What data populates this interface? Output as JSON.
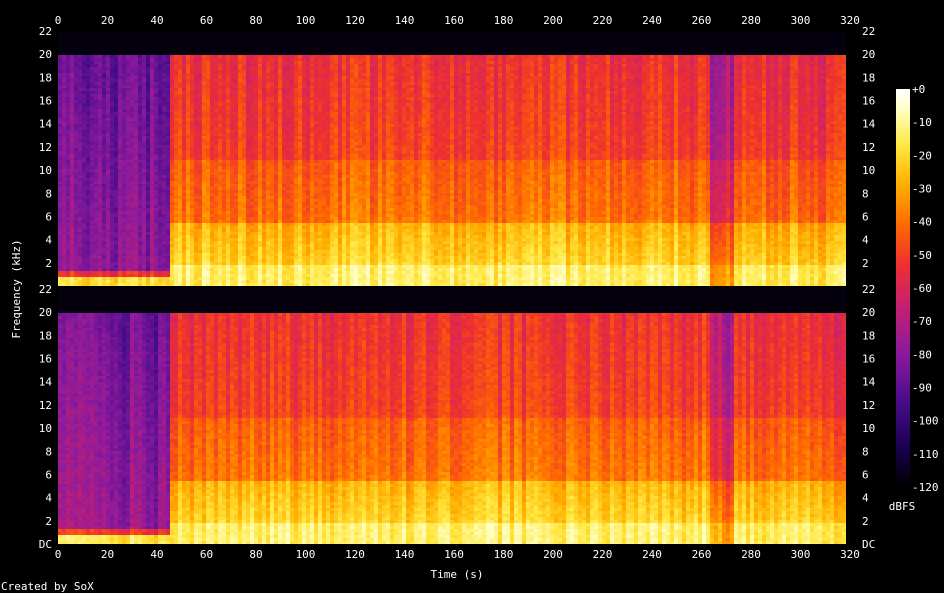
{
  "chart_data": {
    "type": "heatmap",
    "xlabel": "Time (s)",
    "ylabel": "Frequency (kHz)",
    "x_ticks": [
      "0",
      "20",
      "40",
      "60",
      "80",
      "100",
      "120",
      "140",
      "160",
      "180",
      "200",
      "220",
      "240",
      "260",
      "280",
      "300",
      "320"
    ],
    "xlim": [
      0,
      320
    ],
    "channels": [
      {
        "y_ticks": [
          "22",
          "20",
          "18",
          "16",
          "14",
          "12",
          "10",
          "8",
          "6",
          "4",
          "2"
        ],
        "ylim": [
          0,
          22
        ]
      },
      {
        "y_ticks": [
          "22",
          "20",
          "18",
          "16",
          "14",
          "12",
          "10",
          "8",
          "6",
          "4",
          "2",
          "DC"
        ],
        "ylim": [
          0,
          22
        ]
      }
    ],
    "colorbar": {
      "label": "dBFS",
      "ticks": [
        "+0",
        "-10",
        "-20",
        "-30",
        "-40",
        "-50",
        "-60",
        "-70",
        "-80",
        "-90",
        "-100",
        "-110",
        "-120"
      ],
      "range": [
        -120,
        0
      ]
    },
    "content_profile": {
      "segments": [
        {
          "start": 0,
          "end": 44,
          "description_level": "quiet",
          "mean_dbfs": -85
        },
        {
          "start": 44,
          "end": 262,
          "description_level": "loud",
          "mean_dbfs": -50
        },
        {
          "start": 262,
          "end": 273,
          "description_level": "dip",
          "mean_dbfs": -70
        },
        {
          "start": 273,
          "end": 318,
          "description_level": "loud",
          "mean_dbfs": -52
        }
      ],
      "bandwidth_khz": 20
    },
    "colors": {
      "background": "#000000",
      "scale": [
        "#000000",
        "#1a0050",
        "#4b0d8c",
        "#8c1a9c",
        "#c8206e",
        "#ee3030",
        "#ff6a00",
        "#ffb000",
        "#ffe840",
        "#ffffc8",
        "#ffffff"
      ]
    }
  },
  "footer": {
    "credit": "Created by SoX"
  }
}
